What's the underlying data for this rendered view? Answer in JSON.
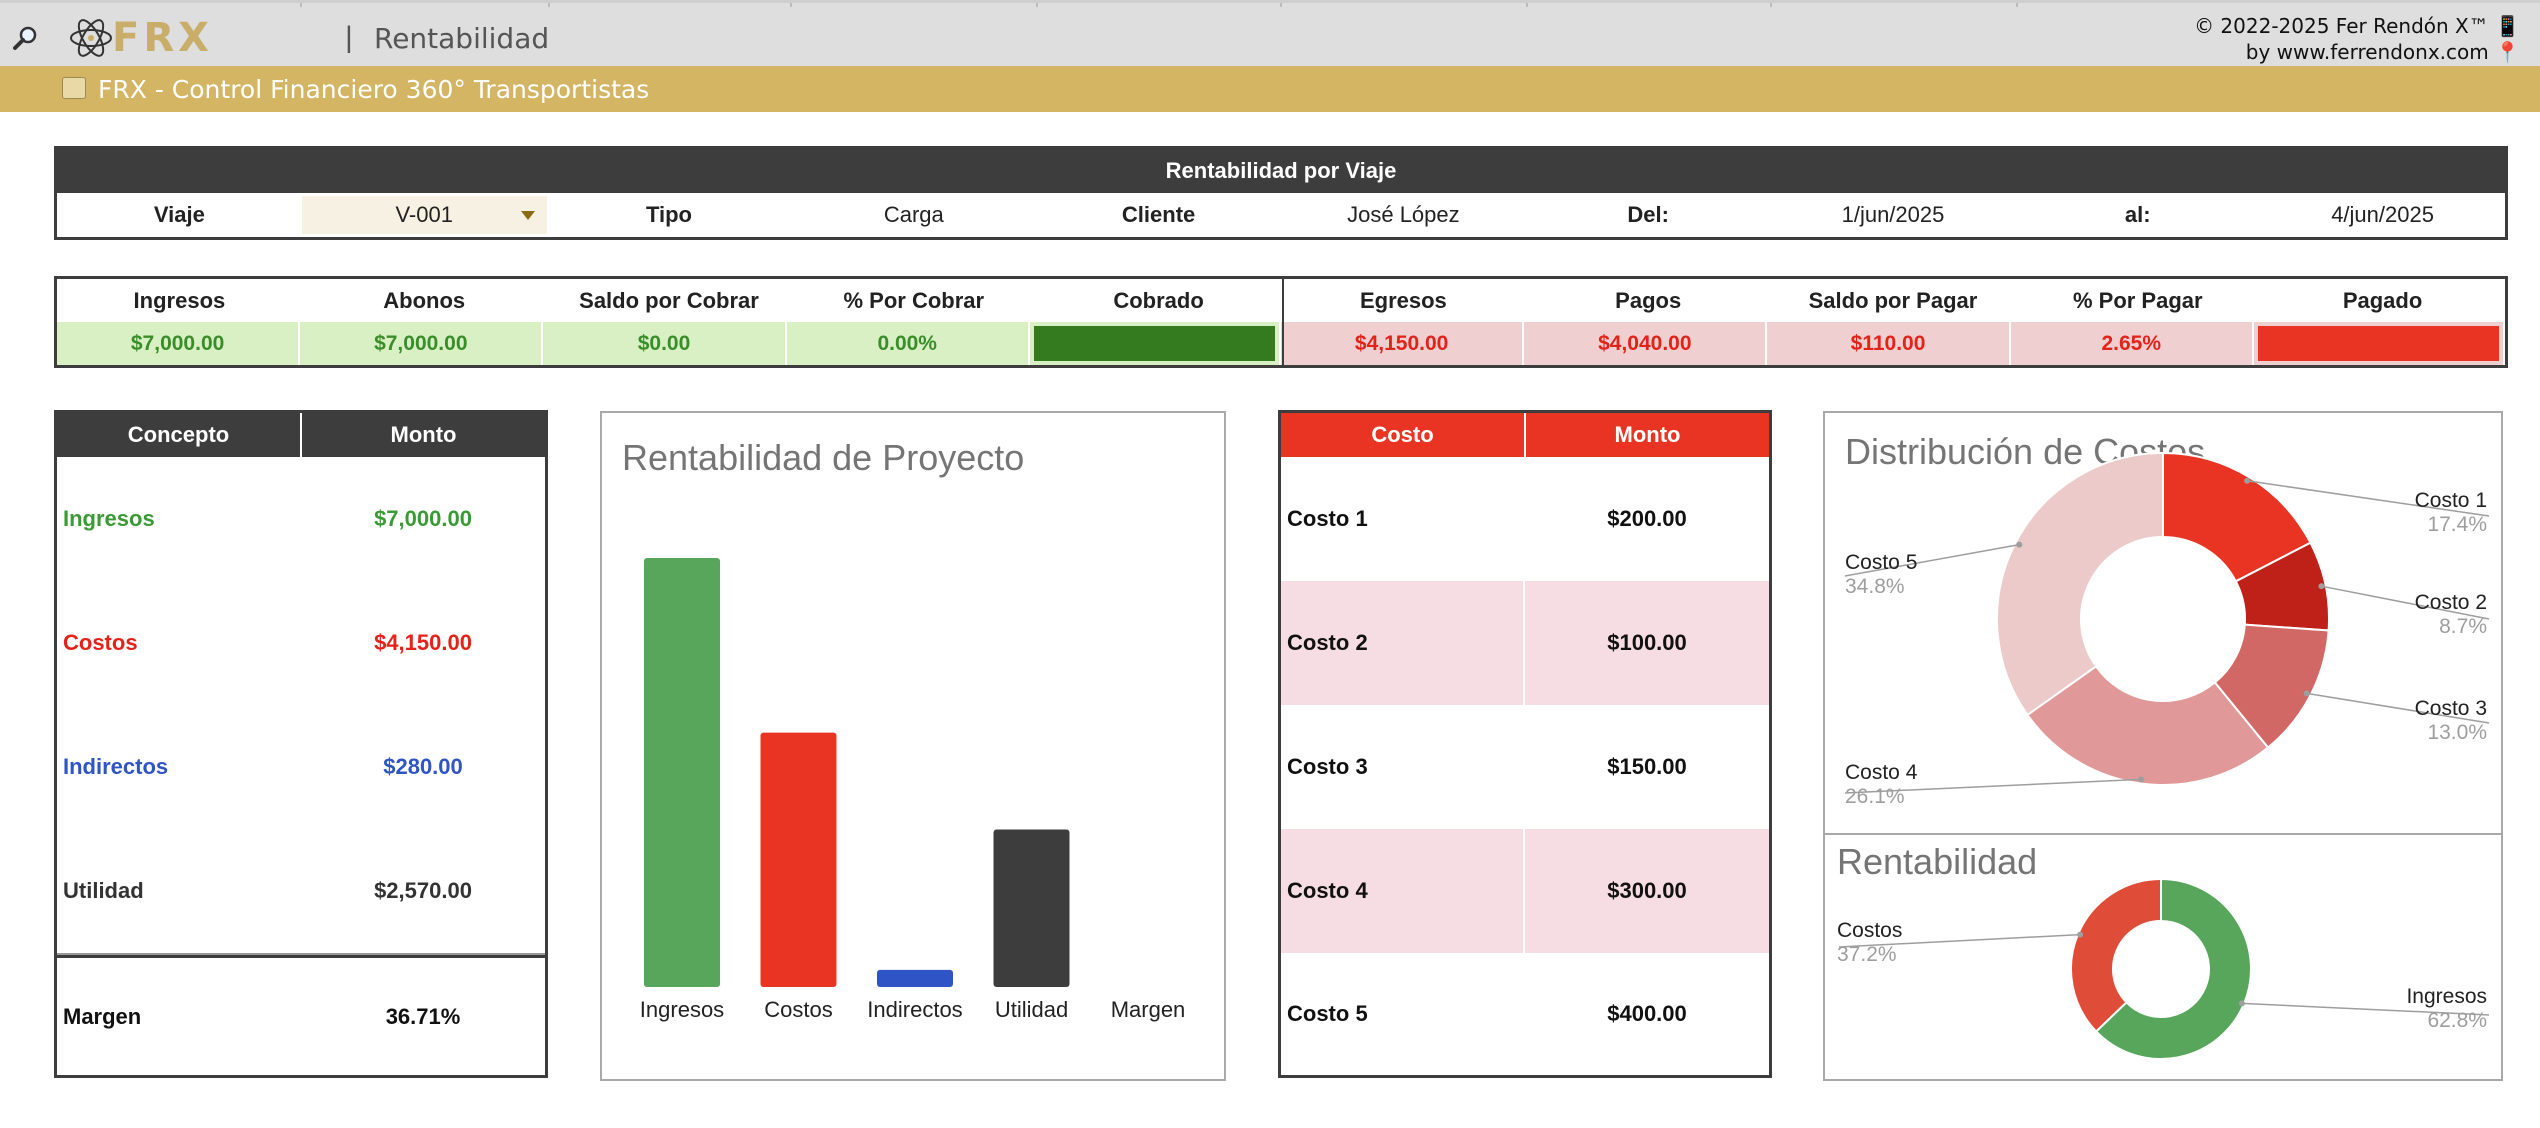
{
  "topbar": {
    "page_title": "Rentabilidad",
    "separator": "|",
    "logo_text": "FRX",
    "copyright_line1": "© 2022-2025 Fer Rendón X™ 📱",
    "copyright_line2": "by www.ferrendonx.com 📍"
  },
  "subbar": {
    "title": "FRX - Control Financiero 360° Transportistas",
    "icon": "money-icon"
  },
  "trip": {
    "title": "Rentabilidad por Viaje",
    "viaje_label": "Viaje",
    "viaje_value": "V-001",
    "tipo_label": "Tipo",
    "tipo_value": "Carga",
    "cliente_label": "Cliente",
    "cliente_value": "José López",
    "del_label": "Del:",
    "del_value": "1/jun/2025",
    "al_label": "al:",
    "al_value": "4/jun/2025"
  },
  "summary": {
    "headers": [
      "Ingresos",
      "Abonos",
      "Saldo por Cobrar",
      "% Por Cobrar",
      "Cobrado",
      "Egresos",
      "Pagos",
      "Saldo por Pagar",
      "% Por Pagar",
      "Pagado"
    ],
    "values": [
      "$7,000.00",
      "$7,000.00",
      "$0.00",
      "0.00%",
      "",
      "$4,150.00",
      "$4,040.00",
      "$110.00",
      "2.65%",
      ""
    ],
    "cobrado_fill": 1.0,
    "pagado_fill": 1.0,
    "colors": {
      "green_text": "#3a8e2a",
      "green_bg": "#d9efc4",
      "green_bar": "#337b1e",
      "red_text": "#e3231a",
      "red_bg": "#efcfcf",
      "red_bar": "#e93424"
    }
  },
  "concept": {
    "headers": [
      "Concepto",
      "Monto"
    ],
    "rows": [
      {
        "label": "Ingresos",
        "value": "$7,000.00",
        "color": "#3a9b34"
      },
      {
        "label": "Costos",
        "value": "$4,150.00",
        "color": "#e3231a"
      },
      {
        "label": "Indirectos",
        "value": "$280.00",
        "color": "#2f54c6"
      },
      {
        "label": "Utilidad",
        "value": "$2,570.00",
        "color": "#333333"
      },
      {
        "label": "Margen",
        "value": "36.71%",
        "color": "#111111"
      }
    ]
  },
  "chart_data": [
    {
      "type": "bar",
      "title": "Rentabilidad de Proyecto",
      "categories": [
        "Ingresos",
        "Costos",
        "Indirectos",
        "Utilidad",
        "Margen"
      ],
      "values": [
        7000,
        4150,
        280,
        2570,
        0.3671
      ],
      "colors": [
        "#58a65c",
        "#e93424",
        "#2f54c6",
        "#3d3d3d",
        "#999999"
      ],
      "ylim": [
        0,
        7000
      ],
      "grid": false
    },
    {
      "type": "pie",
      "title": "Distribución de Costos",
      "categories": [
        "Costo 1",
        "Costo 2",
        "Costo 3",
        "Costo 4",
        "Costo 5"
      ],
      "values": [
        17.4,
        8.7,
        13.0,
        26.1,
        34.8
      ],
      "labels": [
        "17.4%",
        "8.7%",
        "13.0%",
        "26.1%",
        "34.8%"
      ],
      "colors": [
        "#e93424",
        "#bf2119",
        "#d26866",
        "#e09898",
        "#eccaca"
      ],
      "donut": true
    },
    {
      "type": "pie",
      "title": "Rentabilidad",
      "categories": [
        "Ingresos",
        "Costos"
      ],
      "values": [
        62.8,
        37.2
      ],
      "labels": [
        "62.8%",
        "37.2%"
      ],
      "colors": [
        "#58a65c",
        "#df4d39"
      ],
      "donut": true
    }
  ],
  "costs": {
    "headers": [
      "Costo",
      "Monto"
    ],
    "rows": [
      {
        "label": "Costo 1",
        "value": "$200.00"
      },
      {
        "label": "Costo 2",
        "value": "$100.00"
      },
      {
        "label": "Costo 3",
        "value": "$150.00"
      },
      {
        "label": "Costo 4",
        "value": "$300.00"
      },
      {
        "label": "Costo 5",
        "value": "$400.00"
      }
    ]
  }
}
